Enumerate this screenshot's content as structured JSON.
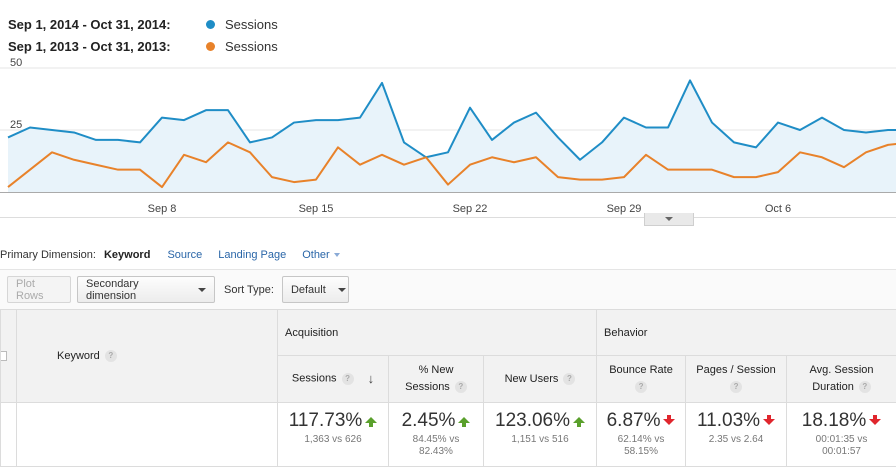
{
  "legend": [
    {
      "range": "Sep 1, 2014 - Oct 31, 2014:",
      "series": "Sessions",
      "color": "#1f8dc6"
    },
    {
      "range": "Sep 1, 2013 - Oct 31, 2013:",
      "series": "Sessions",
      "color": "#e8822a"
    }
  ],
  "chart_data": {
    "type": "area",
    "ylim": [
      0,
      50
    ],
    "yticks": [
      "50",
      "25"
    ],
    "xticks": [
      "Sep 8",
      "Sep 15",
      "Sep 22",
      "Sep 29",
      "Oct 6"
    ],
    "x": [
      "Sep 1",
      "Sep 2",
      "Sep 3",
      "Sep 4",
      "Sep 5",
      "Sep 6",
      "Sep 7",
      "Sep 8",
      "Sep 9",
      "Sep 10",
      "Sep 11",
      "Sep 12",
      "Sep 13",
      "Sep 14",
      "Sep 15",
      "Sep 16",
      "Sep 17",
      "Sep 18",
      "Sep 19",
      "Sep 20",
      "Sep 21",
      "Sep 22",
      "Sep 23",
      "Sep 24",
      "Sep 25",
      "Sep 26",
      "Sep 27",
      "Sep 28",
      "Sep 29",
      "Sep 30",
      "Oct 1",
      "Oct 2",
      "Oct 3",
      "Oct 4",
      "Oct 5",
      "Oct 6",
      "Oct 7",
      "Oct 8",
      "Oct 9",
      "Oct 10",
      "Oct 11",
      "Oct 12"
    ],
    "series": [
      {
        "name": "Sessions",
        "period": "Sep 1, 2014 - Oct 31, 2014",
        "color": "#1f8dc6",
        "fill": true,
        "values": [
          22,
          26,
          25,
          24,
          21,
          21,
          20,
          30,
          29,
          33,
          33,
          20,
          22,
          28,
          29,
          29,
          30,
          44,
          20,
          14,
          16,
          34,
          21,
          28,
          32,
          22,
          13,
          20,
          30,
          26,
          26,
          45,
          28,
          20,
          18,
          28,
          25,
          30,
          25,
          24,
          25,
          25
        ]
      },
      {
        "name": "Sessions",
        "period": "Sep 1, 2013 - Oct 31, 2013",
        "color": "#e8822a",
        "fill": false,
        "values": [
          2,
          9,
          16,
          13,
          11,
          9,
          9,
          2,
          15,
          12,
          20,
          16,
          6,
          4,
          5,
          18,
          11,
          15,
          11,
          14,
          3,
          11,
          14,
          12,
          14,
          6,
          5,
          5,
          6,
          15,
          9,
          9,
          9,
          6,
          6,
          8,
          16,
          14,
          10,
          16,
          19,
          20
        ]
      }
    ]
  },
  "dimensions": {
    "label": "Primary Dimension:",
    "active": "Keyword",
    "links": [
      "Source",
      "Landing Page"
    ],
    "other": "Other"
  },
  "toolbar": {
    "plot_rows": "Plot Rows",
    "secondary": "Secondary dimension",
    "sort_label": "Sort Type:",
    "sort_value": "Default"
  },
  "table": {
    "keyword_header": "Keyword",
    "groups": {
      "acquisition": "Acquisition",
      "behavior": "Behavior"
    },
    "columns": [
      {
        "line1": "Sessions",
        "line2": "",
        "value": "117.73%",
        "trend": "up",
        "compare1": "1,363 vs 626",
        "compare2": ""
      },
      {
        "line1": "% New",
        "line2": "Sessions",
        "value": "2.45%",
        "trend": "up",
        "compare1": "84.45% vs",
        "compare2": "82.43%"
      },
      {
        "line1": "New Users",
        "line2": "",
        "value": "123.06%",
        "trend": "up",
        "compare1": "1,151 vs 516",
        "compare2": ""
      },
      {
        "line1": "Bounce Rate",
        "line2": "",
        "value": "6.87%",
        "trend": "down",
        "compare1": "62.14% vs",
        "compare2": "58.15%"
      },
      {
        "line1": "Pages / Session",
        "line2": "",
        "value": "11.03%",
        "trend": "down",
        "compare1": "2.35 vs 2.64",
        "compare2": ""
      },
      {
        "line1": "Avg. Session",
        "line2": "Duration",
        "value": "18.18%",
        "trend": "down",
        "compare1": "00:01:35 vs",
        "compare2": "00:01:57"
      }
    ]
  }
}
